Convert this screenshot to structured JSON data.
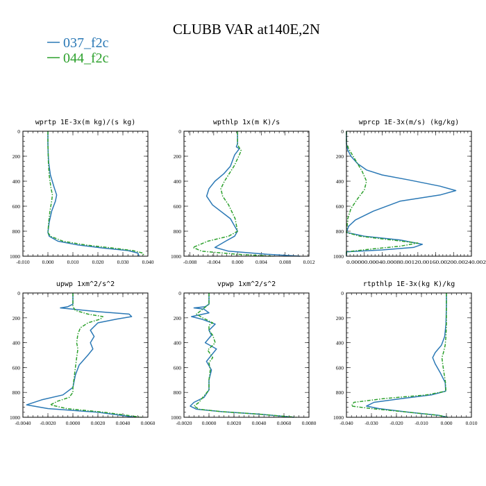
{
  "figure": {
    "title": "CLUBB VAR at140E,2N",
    "legend": [
      {
        "label": "037_f2c",
        "color": "#2a78b5",
        "dash": "none"
      },
      {
        "label": "044_f2c",
        "color": "#2ca02c",
        "dash": "5,2,1.5,2"
      }
    ]
  },
  "chart_data": [
    {
      "type": "line",
      "title": "wprtp  1E-3x(m kg)/(s kg)",
      "xlim": [
        -0.01,
        0.04
      ],
      "ylim": [
        1000,
        0
      ],
      "xticks": [
        "-0.010",
        "0.000",
        "0.010",
        "0.020",
        "0.030",
        "0.040"
      ],
      "xtick_values": [
        -0.01,
        0,
        0.01,
        0.02,
        0.03,
        0.04
      ],
      "yticks": [
        "0",
        "200",
        "400",
        "600",
        "800",
        "1000"
      ],
      "ytick_values": [
        0,
        200,
        400,
        600,
        800,
        1000
      ],
      "series": [
        {
          "name": "037_f2c",
          "x": [
            0.0,
            0.0,
            0.0001,
            0.0003,
            0.001,
            0.0025,
            0.0035,
            0.003,
            0.0015,
            0.0005,
            0.0,
            0.0005,
            0.004,
            0.012,
            0.022,
            0.032,
            0.036,
            0.0365
          ],
          "y": [
            0,
            100,
            180,
            250,
            350,
            450,
            510,
            560,
            640,
            730,
            810,
            840,
            880,
            910,
            935,
            955,
            975,
            1000
          ]
        },
        {
          "name": "044_f2c",
          "x": [
            0.0,
            0.0,
            0.0001,
            0.0002,
            0.0005,
            0.0012,
            0.0018,
            0.0015,
            0.0008,
            0.0003,
            0.0,
            0.001,
            0.006,
            0.015,
            0.026,
            0.034,
            0.038,
            0.0385
          ],
          "y": [
            0,
            100,
            180,
            250,
            350,
            450,
            510,
            560,
            640,
            730,
            810,
            840,
            880,
            910,
            935,
            955,
            975,
            1000
          ]
        }
      ]
    },
    {
      "type": "line",
      "title": "wpthlp  1x(m K)/s",
      "xlim": [
        -0.009,
        0.012
      ],
      "ylim": [
        1000,
        0
      ],
      "xticks": [
        "-0.008",
        "-0.004",
        "0.000",
        "0.004",
        "0.008",
        "0.012"
      ],
      "xtick_values": [
        -0.008,
        -0.004,
        0,
        0.004,
        0.008,
        0.012
      ],
      "yticks": [
        "0",
        "200",
        "400",
        "600",
        "800",
        "1000"
      ],
      "ytick_values": [
        0,
        200,
        400,
        600,
        800,
        1000
      ],
      "series": [
        {
          "name": "037_f2c",
          "x": [
            0.0,
            0.0,
            -0.0002,
            0.0003,
            -0.0005,
            -0.0012,
            -0.0023,
            -0.0038,
            -0.0048,
            -0.0052,
            -0.0042,
            -0.0012,
            0.0,
            -0.0005,
            -0.002,
            -0.0038,
            -0.0015,
            0.005,
            0.0105
          ],
          "y": [
            0,
            100,
            125,
            140,
            190,
            280,
            340,
            400,
            460,
            520,
            590,
            700,
            800,
            840,
            880,
            930,
            960,
            985,
            1000
          ]
        },
        {
          "name": "044_f2c",
          "x": [
            0.0,
            0.0,
            0.0002,
            0.0006,
            0.0002,
            -0.0006,
            -0.0014,
            -0.0022,
            -0.0028,
            -0.0025,
            -0.0015,
            -0.0004,
            0.0,
            -0.0015,
            -0.005,
            -0.0075,
            -0.006,
            0.0,
            0.006
          ],
          "y": [
            0,
            100,
            125,
            155,
            200,
            280,
            340,
            400,
            460,
            520,
            590,
            700,
            800,
            840,
            880,
            930,
            960,
            985,
            1000
          ]
        }
      ]
    },
    {
      "type": "line",
      "title": "wprcp  1E-3x(m/s) (kg/kg)",
      "xlim": [
        0,
        0.0028
      ],
      "ylim": [
        1000,
        0
      ],
      "xticks": [
        "0.0000",
        "0.0004",
        "0.0008",
        "0.0012",
        "0.0016",
        "0.0020",
        "0.0024",
        "0.0028"
      ],
      "xtick_values": [
        0,
        0.0004,
        0.0008,
        0.0012,
        0.0016,
        0.002,
        0.0024,
        0.0028
      ],
      "xtick_format": "run-together",
      "yticks": [
        "0",
        "200",
        "400",
        "600",
        "800",
        "1000"
      ],
      "ytick_values": [
        0,
        200,
        400,
        600,
        800,
        1000
      ],
      "series": [
        {
          "name": "037_f2c",
          "x": [
            0.0,
            0.0,
            3e-05,
            0.0001,
            0.00025,
            0.00045,
            0.0008,
            0.0014,
            0.0021,
            0.00245,
            0.0021,
            0.0012,
            0.0006,
            0.0002,
            5e-05,
            0.0,
            0.0004,
            0.0012,
            0.0017,
            0.0015,
            0.0008,
            0.0,
            0.0
          ],
          "y": [
            0,
            100,
            150,
            200,
            260,
            310,
            350,
            390,
            440,
            475,
            510,
            560,
            640,
            710,
            760,
            810,
            840,
            870,
            905,
            930,
            950,
            965,
            1000
          ]
        },
        {
          "name": "044_f2c",
          "x": [
            0.0,
            0.0,
            5e-05,
            0.00015,
            0.00025,
            0.00035,
            0.00045,
            0.0004,
            0.00025,
            0.0001,
            3e-05,
            0.0,
            0.0003,
            0.001,
            0.0016,
            0.0012,
            0.0005,
            0.0,
            0.0
          ],
          "y": [
            0,
            100,
            140,
            200,
            260,
            320,
            400,
            470,
            540,
            620,
            700,
            810,
            840,
            870,
            895,
            920,
            945,
            965,
            1000
          ]
        }
      ]
    },
    {
      "type": "line",
      "title": "upwp  1xm^2/s^2",
      "xlim": [
        -0.004,
        0.006
      ],
      "ylim": [
        1000,
        0
      ],
      "xticks": [
        "-0.0040",
        "-0.0020",
        "0.0000",
        "0.0020",
        "0.0040",
        "0.0060"
      ],
      "xtick_values": [
        -0.004,
        -0.002,
        0,
        0.002,
        0.004,
        0.006
      ],
      "yticks": [
        "0",
        "200",
        "400",
        "600",
        "800",
        "1000"
      ],
      "ytick_values": [
        0,
        200,
        400,
        600,
        800,
        1000
      ],
      "series": [
        {
          "name": "037_f2c",
          "x": [
            0.0,
            0.0,
            -0.0004,
            -0.001,
            0.002,
            0.0045,
            0.0047,
            0.0035,
            0.002,
            0.0014,
            0.0017,
            0.0014,
            0.0016,
            0.0012,
            0.0005,
            0.0002,
            0.0,
            -0.0008,
            -0.0025,
            -0.0037,
            -0.002,
            0.002,
            0.005
          ],
          "y": [
            0,
            90,
            110,
            120,
            150,
            170,
            190,
            210,
            240,
            300,
            350,
            400,
            450,
            500,
            580,
            660,
            760,
            820,
            860,
            900,
            930,
            960,
            1000
          ]
        },
        {
          "name": "044_f2c",
          "x": [
            0.0,
            0.0,
            0.0,
            0.0002,
            0.0012,
            0.0024,
            0.0022,
            0.0012,
            0.0006,
            0.0004,
            0.0003,
            0.0004,
            0.0003,
            0.0002,
            0.0001,
            0.0,
            0.0,
            -0.0003,
            -0.0012,
            -0.0018,
            -0.0005,
            0.0025,
            0.0055
          ],
          "y": [
            0,
            90,
            110,
            140,
            170,
            190,
            210,
            240,
            280,
            330,
            400,
            450,
            520,
            600,
            680,
            760,
            800,
            840,
            870,
            900,
            930,
            960,
            1000
          ]
        }
      ]
    },
    {
      "type": "line",
      "title": "vpwp  1xm^2/s^2",
      "xlim": [
        -0.002,
        0.008
      ],
      "ylim": [
        1000,
        0
      ],
      "xticks": [
        "-0.0020",
        "0.0000",
        "0.0020",
        "0.0040",
        "0.0060",
        "0.0080"
      ],
      "xtick_values": [
        -0.002,
        0,
        0.002,
        0.004,
        0.006,
        0.008
      ],
      "yticks": [
        "0",
        "200",
        "400",
        "600",
        "800",
        "1000"
      ],
      "ytick_values": [
        0,
        200,
        400,
        600,
        800,
        1000
      ],
      "series": [
        {
          "name": "037_f2c",
          "x": [
            0.0,
            0.0,
            -0.0003,
            -0.0012,
            -0.0004,
            0.0,
            -0.0014,
            -0.0006,
            0.0005,
            0.0,
            0.0002,
            -0.0003,
            0.0006,
            0.0002,
            -0.0002,
            0.0002,
            0.0,
            0.0,
            -0.0004,
            -0.0012,
            -0.0015,
            -0.001,
            0.001,
            0.004,
            0.0068
          ],
          "y": [
            0,
            90,
            110,
            120,
            130,
            160,
            190,
            210,
            250,
            300,
            340,
            400,
            450,
            500,
            550,
            620,
            700,
            780,
            840,
            880,
            910,
            935,
            955,
            975,
            1000
          ]
        },
        {
          "name": "044_f2c",
          "x": [
            0.0,
            0.0,
            -0.0005,
            -0.001,
            -0.0005,
            0.0003,
            0.0,
            0.0,
            0.0003,
            0.0005,
            -0.0001,
            0.0003,
            0.0,
            0.0001,
            0.0,
            0.0,
            -0.0005,
            -0.0008,
            -0.0012,
            -0.0008,
            0.001,
            0.004,
            0.007
          ],
          "y": [
            0,
            90,
            130,
            170,
            200,
            240,
            260,
            300,
            340,
            400,
            460,
            520,
            560,
            620,
            700,
            780,
            840,
            880,
            910,
            935,
            955,
            975,
            1000
          ]
        }
      ]
    },
    {
      "type": "line",
      "title": "rtpthlp  1E-3x(kg K)/kg",
      "xlim": [
        -0.04,
        0.01
      ],
      "ylim": [
        1000,
        0
      ],
      "xticks": [
        "-0.040",
        "-0.030",
        "-0.020",
        "-0.010",
        "0.000",
        "0.010"
      ],
      "xtick_values": [
        -0.04,
        -0.03,
        -0.02,
        -0.01,
        0,
        0.01
      ],
      "yticks": [
        "0",
        "200",
        "400",
        "600",
        "800",
        "1000"
      ],
      "ytick_values": [
        0,
        200,
        400,
        600,
        800,
        1000
      ],
      "series": [
        {
          "name": "037_f2c",
          "x": [
            0.0,
            0.0,
            -0.0002,
            -0.0007,
            -0.002,
            -0.0045,
            -0.0055,
            -0.0045,
            -0.0025,
            -0.0005,
            -0.0003,
            -0.006,
            -0.018,
            -0.029,
            -0.032,
            -0.027,
            -0.015,
            -0.003,
            0.0005
          ],
          "y": [
            0,
            100,
            250,
            350,
            420,
            480,
            520,
            570,
            640,
            720,
            790,
            820,
            850,
            880,
            910,
            930,
            960,
            985,
            1000
          ]
        },
        {
          "name": "044_f2c",
          "x": [
            0.0,
            0.0,
            0.0,
            -0.0002,
            -0.0005,
            -0.0012,
            -0.0018,
            -0.0015,
            -0.001,
            -0.0004,
            -0.0002,
            -0.008,
            -0.025,
            -0.037,
            -0.038,
            -0.03,
            -0.015,
            -0.003,
            0.0005
          ],
          "y": [
            0,
            100,
            250,
            350,
            420,
            480,
            520,
            570,
            640,
            720,
            790,
            820,
            850,
            880,
            910,
            930,
            960,
            985,
            1000
          ]
        }
      ]
    }
  ]
}
